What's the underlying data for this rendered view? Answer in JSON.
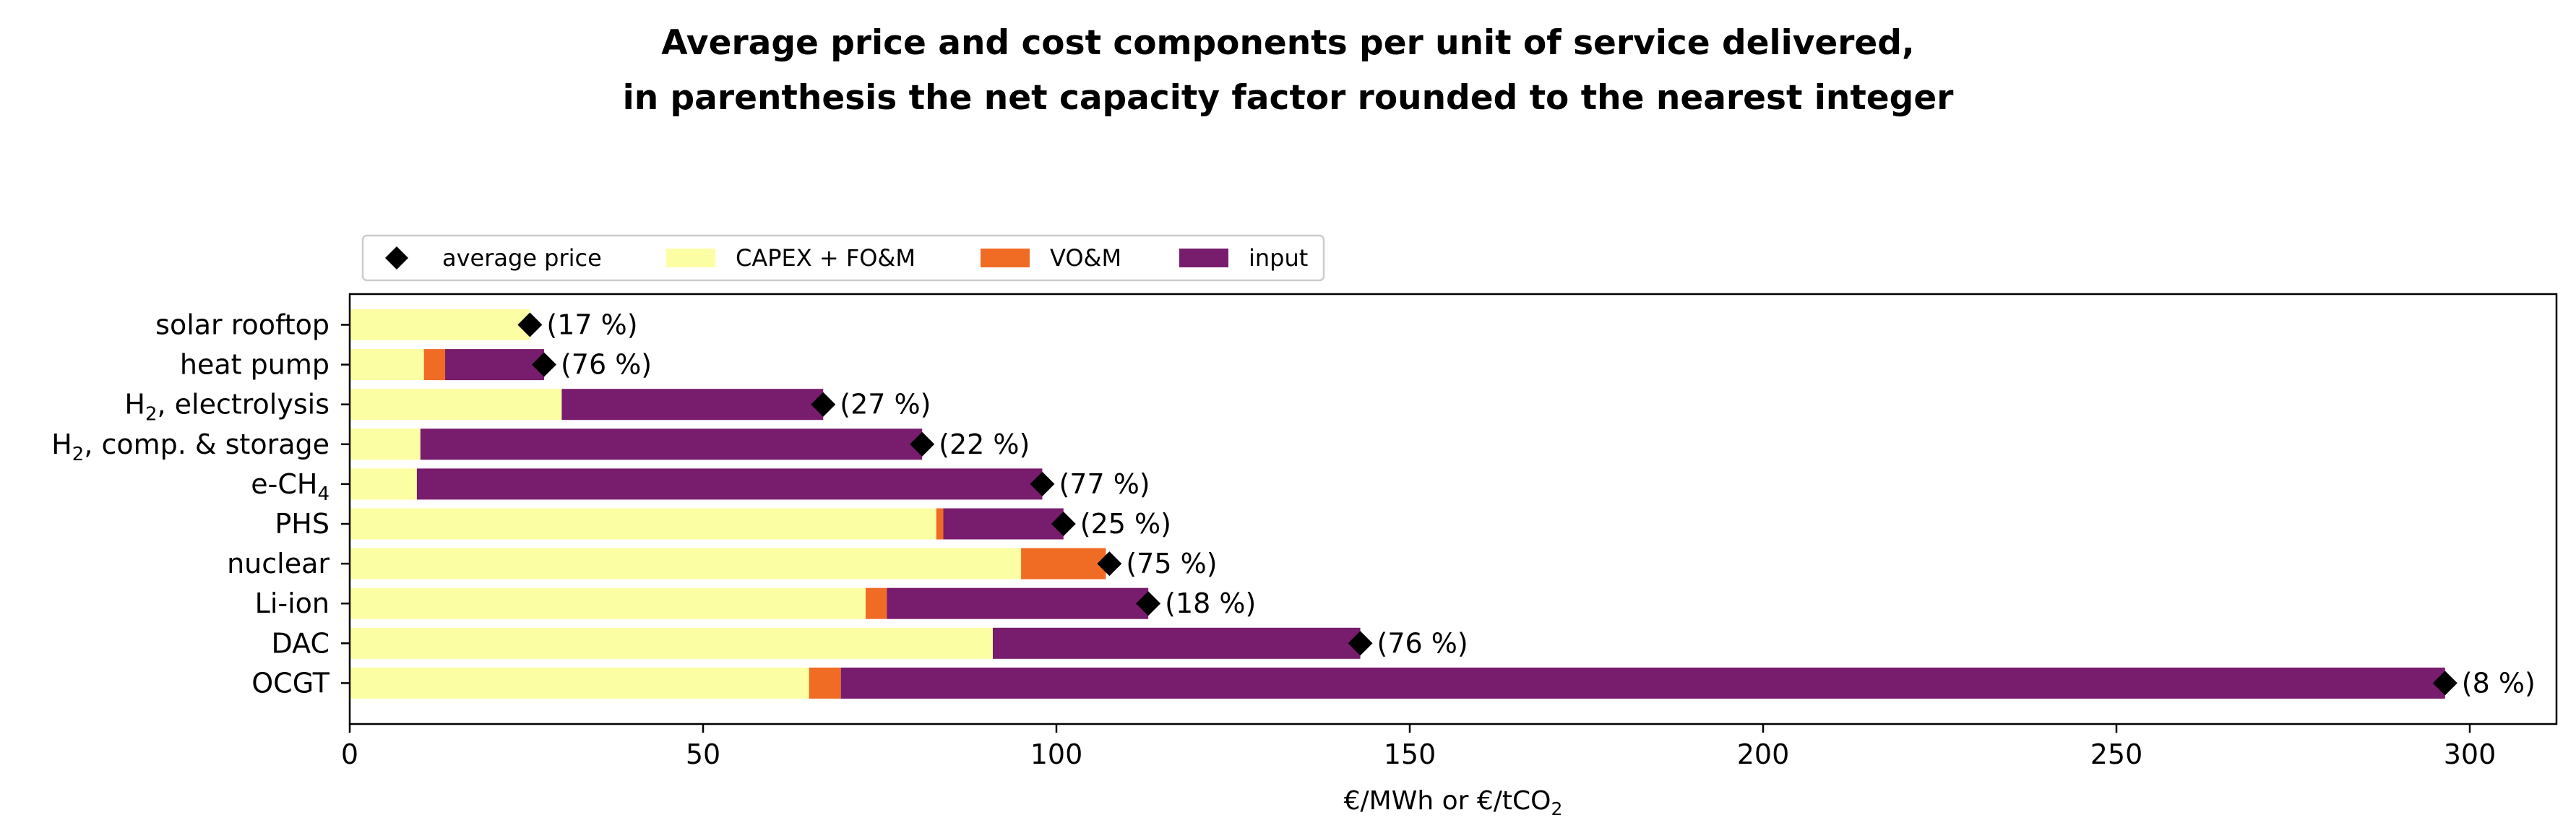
{
  "chart_data": {
    "type": "bar",
    "orientation": "horizontal",
    "stacked": true,
    "title": "Average price and cost components per unit of service delivered,",
    "subtitle": "in parenthesis the net capacity factor rounded to the nearest integer",
    "xlabel": "€/MWh or €/tCO",
    "xlabel_subscript": "2",
    "ylabel": "",
    "xlim": [
      0,
      312
    ],
    "xticks": [
      0,
      50,
      100,
      150,
      200,
      250,
      300
    ],
    "grid": false,
    "legend": "top-left, above plot",
    "categories": [
      {
        "label": "solar rooftop",
        "sub": "",
        "rest": ""
      },
      {
        "label": "heat pump",
        "sub": "",
        "rest": ""
      },
      {
        "label": "H",
        "sub": "2",
        "rest": ", electrolysis"
      },
      {
        "label": "H",
        "sub": "2",
        "rest": ", comp. & storage"
      },
      {
        "label": "e-CH",
        "sub": "4",
        "rest": ""
      },
      {
        "label": "PHS",
        "sub": "",
        "rest": ""
      },
      {
        "label": "nuclear",
        "sub": "",
        "rest": ""
      },
      {
        "label": "Li-ion",
        "sub": "",
        "rest": ""
      },
      {
        "label": "DAC",
        "sub": "",
        "rest": ""
      },
      {
        "label": "OCGT",
        "sub": "",
        "rest": ""
      }
    ],
    "series": [
      {
        "name": "CAPEX + FO&M",
        "color": "#fcfea4",
        "values": [
          25.5,
          10.5,
          30,
          10,
          9.5,
          83,
          95,
          73,
          91,
          65
        ]
      },
      {
        "name": "VO&M",
        "color": "#f06c24",
        "values": [
          0,
          3,
          0,
          0,
          0,
          1,
          12,
          3,
          0,
          4.5
        ]
      },
      {
        "name": "input",
        "color": "#781c6d",
        "values": [
          0,
          14,
          37,
          71,
          88.5,
          17,
          0,
          37,
          52,
          227
        ]
      }
    ],
    "average_price": {
      "name": "average price",
      "color": "#000000",
      "values": [
        25.5,
        27.5,
        67,
        81,
        98,
        101,
        107.5,
        113,
        143,
        296.5
      ]
    },
    "capacity_factor_labels": [
      "(17 %)",
      "(76 %)",
      "(27 %)",
      "(22 %)",
      "(77 %)",
      "(25 %)",
      "(75 %)",
      "(18 %)",
      "(76 %)",
      "(8 %)"
    ]
  }
}
